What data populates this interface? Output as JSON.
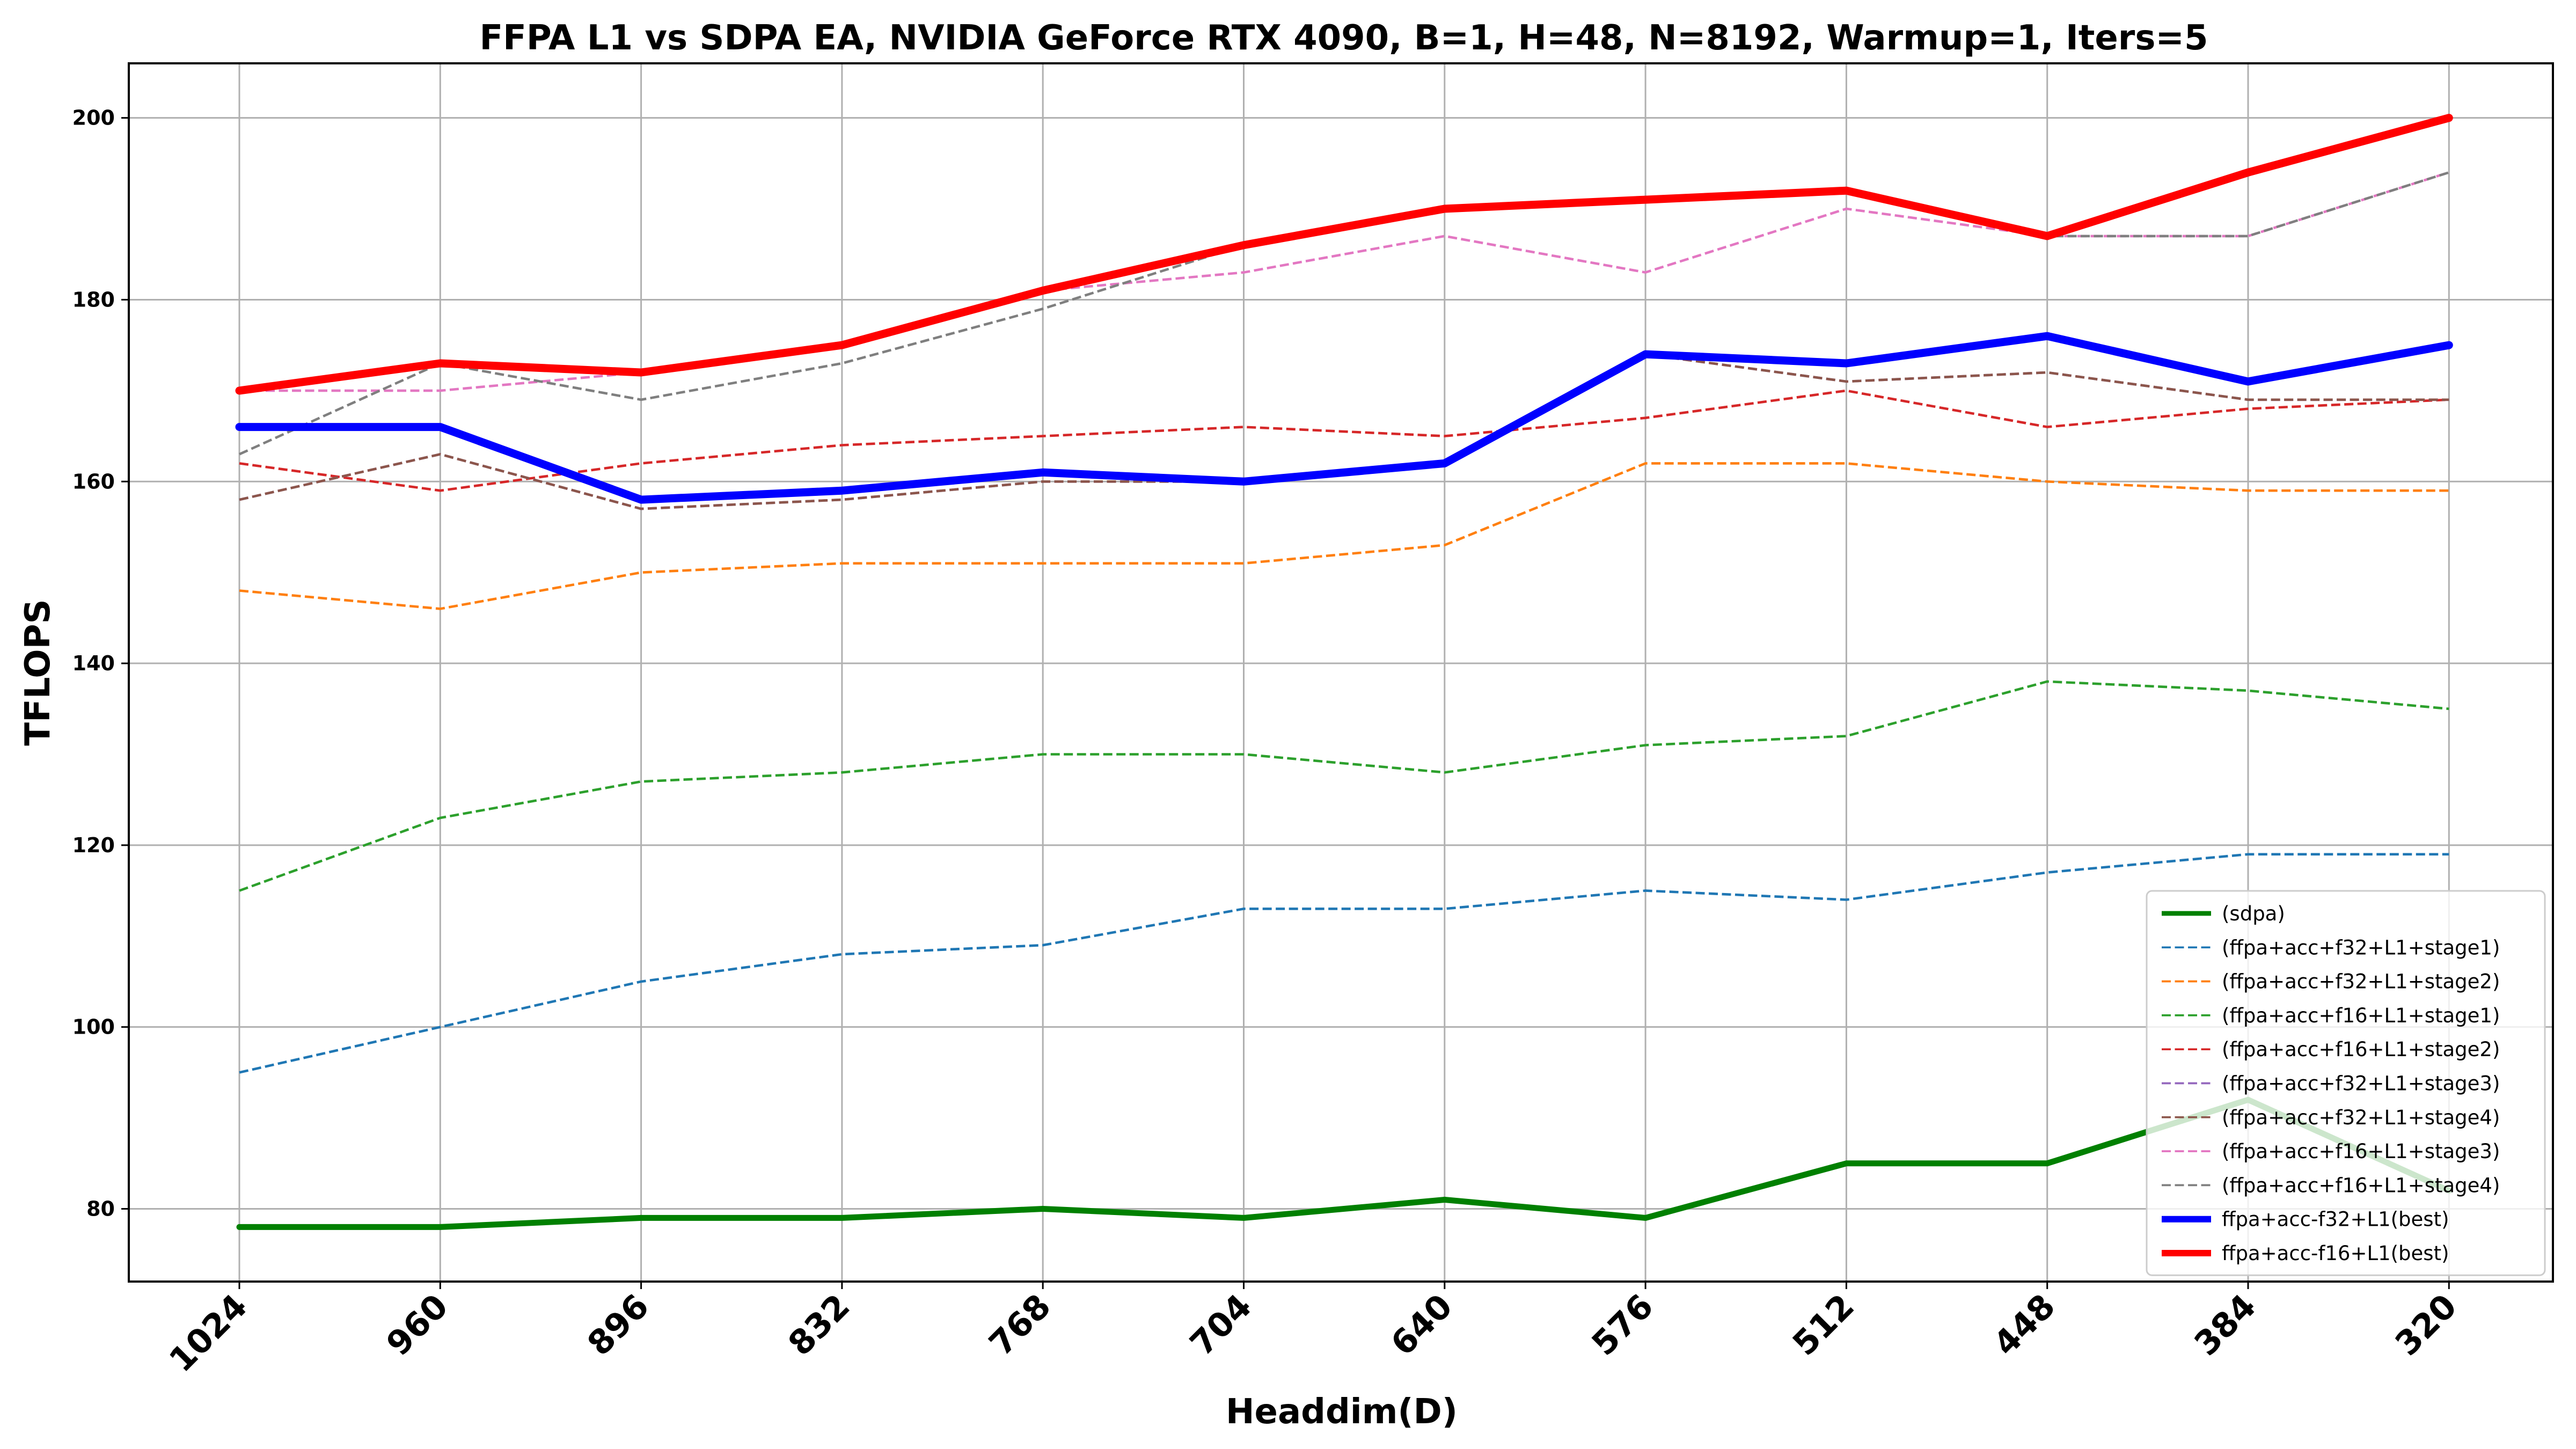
{
  "chart_data": {
    "type": "line",
    "title": "FFPA L1 vs SDPA EA, NVIDIA GeForce RTX 4090, B=1, H=48, N=8192, Warmup=1, Iters=5",
    "xlabel": "Headdim(D)",
    "ylabel": "TFLOPS",
    "categories": [
      "1024",
      "960",
      "896",
      "832",
      "768",
      "704",
      "640",
      "576",
      "512",
      "448",
      "384",
      "320"
    ],
    "ylim": [
      72,
      206
    ],
    "yticks": [
      80,
      100,
      120,
      140,
      160,
      180,
      200
    ],
    "grid": true,
    "legend_position": "lower-right",
    "series": [
      {
        "name": "(sdpa)",
        "color": "#008000",
        "style": "solid",
        "weight": "thick",
        "values": [
          78,
          78,
          79,
          79,
          80,
          79,
          81,
          79,
          85,
          85,
          92,
          82
        ]
      },
      {
        "name": "(ffpa+acc+f32+L1+stage1)",
        "color": "#1f77b4",
        "style": "dashed",
        "weight": "thin",
        "values": [
          95,
          100,
          105,
          108,
          109,
          113,
          113,
          115,
          114,
          117,
          119,
          119
        ]
      },
      {
        "name": "(ffpa+acc+f32+L1+stage2)",
        "color": "#ff7f0e",
        "style": "dashed",
        "weight": "thin",
        "values": [
          148,
          146,
          150,
          151,
          151,
          151,
          153,
          162,
          162,
          160,
          159,
          159
        ]
      },
      {
        "name": "(ffpa+acc+f16+L1+stage1)",
        "color": "#2ca02c",
        "style": "dashed",
        "weight": "thin",
        "values": [
          115,
          123,
          127,
          128,
          130,
          130,
          128,
          131,
          132,
          138,
          137,
          135
        ]
      },
      {
        "name": "(ffpa+acc+f16+L1+stage2)",
        "color": "#d62728",
        "style": "dashed",
        "weight": "thin",
        "values": [
          162,
          159,
          162,
          164,
          165,
          166,
          165,
          167,
          170,
          166,
          168,
          169
        ]
      },
      {
        "name": "(ffpa+acc+f32+L1+stage3)",
        "color": "#9467bd",
        "style": "dashed",
        "weight": "thin",
        "values": [
          158,
          163,
          157,
          158,
          160,
          160,
          162,
          174,
          171,
          172,
          169,
          169
        ]
      },
      {
        "name": "(ffpa+acc+f32+L1+stage4)",
        "color": "#8c564b",
        "style": "dashed",
        "weight": "thin",
        "values": [
          158,
          163,
          157,
          158,
          160,
          160,
          162,
          174,
          171,
          172,
          169,
          169
        ]
      },
      {
        "name": "(ffpa+acc+f16+L1+stage3)",
        "color": "#e377c2",
        "style": "dashed",
        "weight": "thin",
        "values": [
          170,
          170,
          172,
          175,
          181,
          183,
          187,
          183,
          190,
          187,
          187,
          194
        ]
      },
      {
        "name": "(ffpa+acc+f16+L1+stage4)",
        "color": "#7f7f7f",
        "style": "dashed",
        "weight": "thin",
        "values": [
          163,
          173,
          169,
          173,
          179,
          186,
          190,
          191,
          192,
          187,
          187,
          194
        ]
      },
      {
        "name": "ffpa+acc-f32+L1(best)",
        "color": "#0000ff",
        "style": "solid",
        "weight": "heavy",
        "values": [
          166,
          166,
          158,
          159,
          161,
          160,
          162,
          174,
          173,
          176,
          171,
          175
        ]
      },
      {
        "name": "ffpa+acc-f16+L1(best)",
        "color": "#ff0000",
        "style": "solid",
        "weight": "heavy",
        "values": [
          170,
          173,
          172,
          175,
          181,
          186,
          190,
          191,
          192,
          187,
          194,
          200
        ]
      }
    ]
  }
}
